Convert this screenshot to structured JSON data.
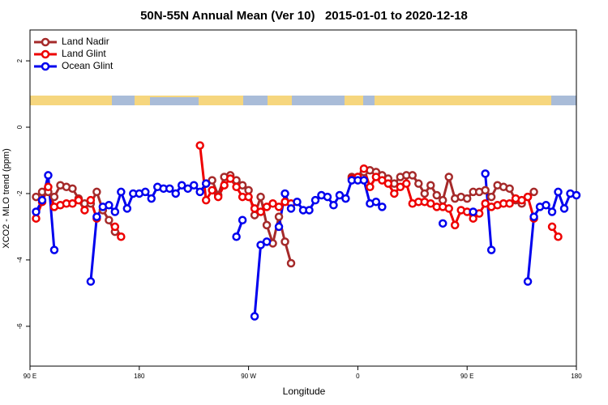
{
  "chart_data": {
    "type": "line",
    "title": "50N-55N Annual Mean (Ver 10)   2015-01-01 to 2020-12-18",
    "x_label": "Longitude",
    "y_label": "XCO2 - MLO trend (ppm)",
    "legend": "top-left",
    "xlim": [
      90,
      540
    ],
    "ylim": [
      -7.2,
      2.93
    ],
    "xticks": [
      {
        "value": 90,
        "label": "90 E"
      },
      180,
      {
        "value": 270,
        "label": "90 W"
      },
      {
        "value": 360,
        "label": "0"
      },
      {
        "value": 450,
        "label": "90 E"
      },
      {
        "value": 540,
        "label": "180"
      }
    ],
    "yticks": [
      -6,
      -4,
      -2,
      0,
      2
    ],
    "x": [
      95,
      100,
      105,
      110,
      115,
      120,
      125,
      130,
      135,
      140,
      145,
      150,
      155,
      160,
      165,
      170,
      175,
      180,
      185,
      190,
      195,
      200,
      205,
      210,
      215,
      220,
      225,
      230,
      235,
      240,
      245,
      250,
      255,
      260,
      265,
      270,
      275,
      280,
      285,
      290,
      295,
      300,
      305,
      310,
      315,
      320,
      325,
      330,
      335,
      340,
      345,
      350,
      355,
      360,
      365,
      370,
      375,
      380,
      385,
      390,
      395,
      400,
      405,
      410,
      415,
      420,
      425,
      430,
      435,
      440,
      445,
      450,
      455,
      460,
      465,
      470,
      475,
      480,
      485,
      490,
      495,
      500,
      505,
      510,
      515,
      520,
      525,
      530,
      535,
      540
    ],
    "series": [
      {
        "name": "Land Nadir",
        "color": "#a52a2a",
        "values": [
          -2.1,
          -1.95,
          -1.95,
          -2.1,
          -1.75,
          -1.8,
          -1.85,
          -2.15,
          -2.3,
          -2.3,
          -1.95,
          -2.5,
          -2.8,
          -3.15,
          null,
          null,
          null,
          null,
          null,
          null,
          null,
          null,
          null,
          null,
          null,
          null,
          null,
          null,
          -1.7,
          -1.6,
          -2.05,
          -1.5,
          -1.45,
          -1.6,
          -1.75,
          -1.9,
          -2.65,
          -2.1,
          -2.95,
          -3.5,
          -2.7,
          -3.45,
          -4.1,
          null,
          null,
          null,
          null,
          null,
          null,
          null,
          null,
          null,
          -1.5,
          -1.5,
          -1.35,
          -1.3,
          -1.35,
          -1.45,
          -1.55,
          -1.7,
          -1.5,
          -1.45,
          -1.45,
          -1.7,
          -2.0,
          -1.75,
          -2.05,
          -2.2,
          -1.5,
          -2.15,
          -2.1,
          -2.15,
          -1.95,
          -1.95,
          -1.9,
          -2.1,
          -1.75,
          -1.8,
          -1.85,
          -2.2,
          -2.3,
          -2.1,
          -1.95,
          null,
          null,
          null,
          null,
          null,
          null,
          null
        ]
      },
      {
        "name": "Land Glint",
        "color": "#ee0000",
        "values": [
          -2.75,
          -2.25,
          -1.8,
          -2.4,
          -2.35,
          -2.3,
          -2.3,
          -2.2,
          -2.5,
          -2.2,
          -2.75,
          null,
          null,
          -3.0,
          -3.3,
          null,
          null,
          null,
          null,
          null,
          null,
          null,
          null,
          null,
          null,
          null,
          null,
          -0.55,
          -2.2,
          -1.9,
          -2.1,
          -1.75,
          -1.55,
          -1.8,
          -2.1,
          -2.1,
          -2.45,
          -2.55,
          -2.4,
          -2.3,
          -2.4,
          -2.25,
          -2.3,
          null,
          null,
          null,
          null,
          null,
          null,
          null,
          null,
          null,
          -1.55,
          -1.5,
          -1.25,
          -1.8,
          -1.5,
          -1.6,
          -1.7,
          -2.0,
          -1.8,
          -1.7,
          -2.3,
          -2.25,
          -2.25,
          -2.3,
          -2.4,
          -2.4,
          -2.45,
          -2.95,
          -2.5,
          -2.55,
          -2.75,
          -2.6,
          -2.3,
          -2.4,
          -2.35,
          -2.3,
          -2.3,
          -2.15,
          -2.2,
          -2.1,
          -2.75,
          null,
          null,
          -3.0,
          -3.3,
          null,
          null,
          null
        ]
      },
      {
        "name": "Ocean Glint",
        "color": "#0000ee",
        "values": [
          -2.55,
          -2.2,
          -1.45,
          -3.7,
          null,
          null,
          null,
          null,
          null,
          -4.65,
          -2.7,
          -2.4,
          -2.35,
          -2.55,
          -1.95,
          -2.45,
          -2.0,
          -2.0,
          -1.95,
          -2.15,
          -1.8,
          -1.85,
          -1.85,
          -2.0,
          -1.75,
          -1.85,
          -1.75,
          -1.95,
          -1.7,
          null,
          null,
          null,
          null,
          -3.3,
          -2.8,
          null,
          -5.7,
          -3.55,
          -3.45,
          null,
          -3.0,
          -2.0,
          -2.45,
          -2.25,
          -2.5,
          -2.5,
          -2.2,
          -2.05,
          -2.1,
          -2.35,
          -2.05,
          -2.15,
          -1.6,
          -1.6,
          -1.6,
          -2.3,
          -2.25,
          -2.4,
          null,
          null,
          null,
          null,
          null,
          null,
          null,
          null,
          null,
          -2.9,
          null,
          null,
          null,
          null,
          -2.55,
          null,
          -1.4,
          -3.7,
          null,
          null,
          null,
          null,
          null,
          -4.65,
          -2.7,
          -2.4,
          -2.35,
          -2.55,
          -1.95,
          -2.45,
          -2.0,
          -2.05
        ]
      }
    ]
  }
}
